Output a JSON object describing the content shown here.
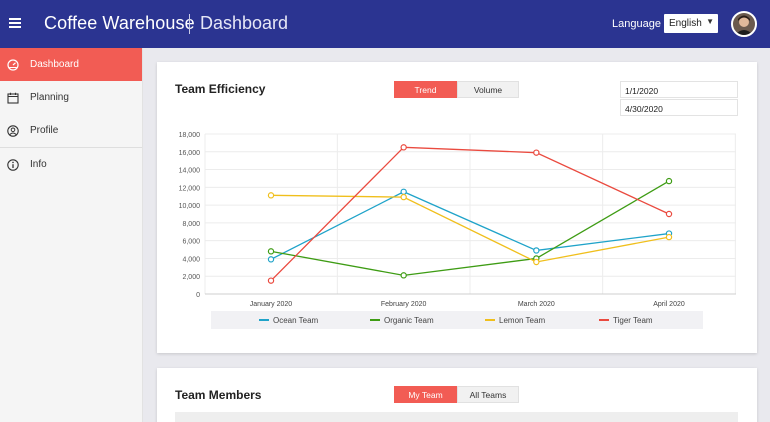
{
  "header": {
    "app_title": "Coffee Warehouse",
    "page_title": "Dashboard",
    "language_label": "Language",
    "language_value": "English",
    "colors": {
      "bar": "#2b3491"
    }
  },
  "sidebar": {
    "items": [
      {
        "label": "Dashboard",
        "icon": "dashboard-icon",
        "active": true
      },
      {
        "label": "Planning",
        "icon": "calendar-icon",
        "active": false
      },
      {
        "label": "Profile",
        "icon": "user-icon",
        "active": false
      },
      {
        "label": "Info",
        "icon": "info-icon",
        "active": false
      }
    ],
    "accent": "#f25c54"
  },
  "efficiency": {
    "title": "Team Efficiency",
    "tabs": {
      "trend": "Trend",
      "volume": "Volume"
    },
    "date_start": "1/1/2020",
    "date_end": "4/30/2020"
  },
  "members": {
    "title": "Team Members",
    "tabs": {
      "my_team": "My Team",
      "all_teams": "All Teams"
    }
  },
  "chart_data": {
    "type": "line",
    "categories": [
      "January 2020",
      "February 2020",
      "March 2020",
      "April 2020"
    ],
    "ylim": [
      0,
      18000
    ],
    "yticks": [
      "0",
      "2,000",
      "4,000",
      "6,000",
      "8,000",
      "10,000",
      "12,000",
      "14,000",
      "16,000",
      "18,000"
    ],
    "grid": true,
    "legend_position": "bottom",
    "series": [
      {
        "name": "Ocean Team",
        "color": "#1fa3c9",
        "values": [
          3900,
          11500,
          4900,
          6800
        ]
      },
      {
        "name": "Organic Team",
        "color": "#3e9c14",
        "values": [
          4800,
          2100,
          4000,
          12700
        ]
      },
      {
        "name": "Lemon Team",
        "color": "#f0bf1c",
        "values": [
          11100,
          10900,
          3600,
          6400
        ]
      },
      {
        "name": "Tiger Team",
        "color": "#ea4a3f",
        "values": [
          1500,
          16500,
          15900,
          9000
        ]
      }
    ]
  }
}
